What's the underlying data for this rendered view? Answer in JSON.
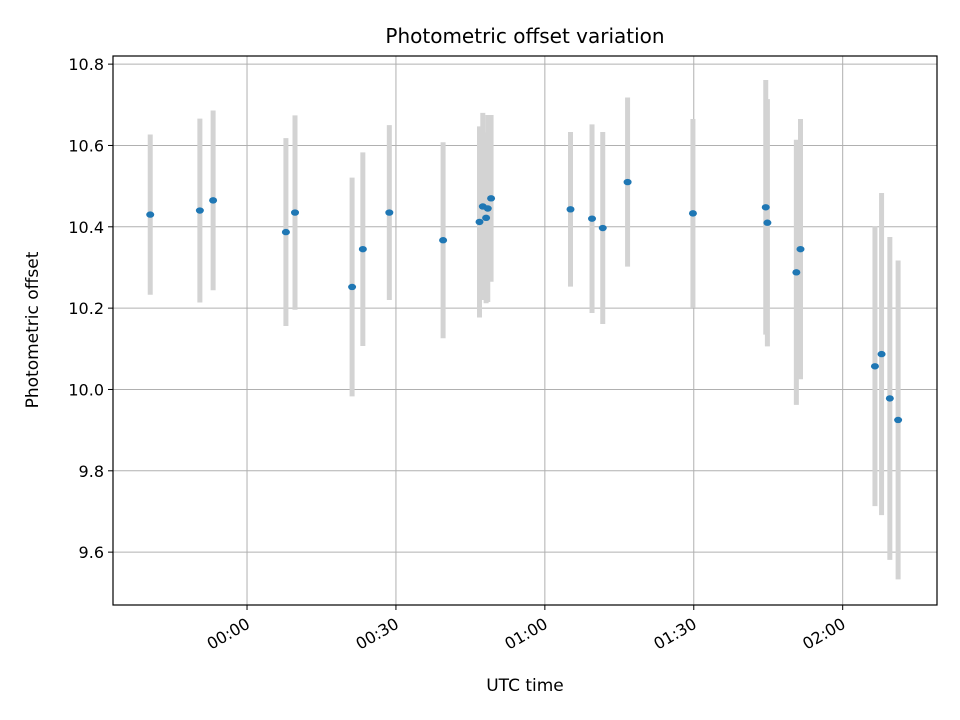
{
  "chart_data": {
    "type": "scatter",
    "title": "Photometric offset variation",
    "xlabel": "UTC time",
    "ylabel": "Photometric offset",
    "x_unit": "time of day (HH:MM, UTC)",
    "xlim": [
      "23:33",
      "02:19"
    ],
    "ylim": [
      9.47,
      10.82
    ],
    "x_ticks": [
      "00:00",
      "00:30",
      "01:00",
      "01:30",
      "02:00"
    ],
    "y_ticks": [
      "9.6",
      "9.8",
      "10.0",
      "10.2",
      "10.4",
      "10.6",
      "10.8"
    ],
    "grid": true,
    "point_color": "#1f77b4",
    "errorbar_color": "#d3d3d3",
    "points": [
      {
        "t": "23:40:30",
        "y": 10.43,
        "err": 0.197
      },
      {
        "t": "23:50:30",
        "y": 10.44,
        "err": 0.226
      },
      {
        "t": "23:53:10",
        "y": 10.465,
        "err": 0.221
      },
      {
        "t": "00:07:50",
        "y": 10.387,
        "err": 0.231
      },
      {
        "t": "00:09:40",
        "y": 10.435,
        "err": 0.239
      },
      {
        "t": "00:21:10",
        "y": 10.252,
        "err": 0.269
      },
      {
        "t": "00:23:20",
        "y": 10.345,
        "err": 0.238
      },
      {
        "t": "00:28:40",
        "y": 10.435,
        "err": 0.215
      },
      {
        "t": "00:39:30",
        "y": 10.367,
        "err": 0.241
      },
      {
        "t": "00:46:50",
        "y": 10.412,
        "err": 0.235
      },
      {
        "t": "00:47:30",
        "y": 10.45,
        "err": 0.23
      },
      {
        "t": "00:48:10",
        "y": 10.422,
        "err": 0.21
      },
      {
        "t": "00:48:30",
        "y": 10.445,
        "err": 0.23
      },
      {
        "t": "00:49:10",
        "y": 10.47,
        "err": 0.205
      },
      {
        "t": "01:05:10",
        "y": 10.443,
        "err": 0.19
      },
      {
        "t": "01:09:30",
        "y": 10.42,
        "err": 0.232
      },
      {
        "t": "01:11:40",
        "y": 10.397,
        "err": 0.236
      },
      {
        "t": "01:16:40",
        "y": 10.51,
        "err": 0.208
      },
      {
        "t": "01:29:50",
        "y": 10.433,
        "err": 0.232
      },
      {
        "t": "01:44:30",
        "y": 10.448,
        "err": 0.313
      },
      {
        "t": "01:44:50",
        "y": 10.41,
        "err": 0.304
      },
      {
        "t": "01:50:40",
        "y": 10.288,
        "err": 0.326
      },
      {
        "t": "01:51:30",
        "y": 10.345,
        "err": 0.32
      },
      {
        "t": "02:06:30",
        "y": 10.057,
        "err": 0.344
      },
      {
        "t": "02:07:50",
        "y": 10.087,
        "err": 0.396
      },
      {
        "t": "02:09:30",
        "y": 9.978,
        "err": 0.397
      },
      {
        "t": "02:11:10",
        "y": 9.925,
        "err": 0.392
      }
    ]
  }
}
